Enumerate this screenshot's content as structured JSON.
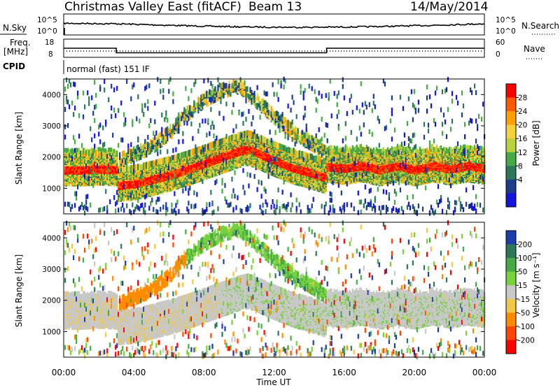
{
  "header": {
    "title": "Christmas Valley East (fitACF)",
    "beam": "Beam 13",
    "date": "14/May/2014"
  },
  "top_panels": {
    "nsky": {
      "left_label": "N.Sky",
      "right_label": "N.Search",
      "left_ticks": [
        "10^5",
        "10^0"
      ],
      "right_ticks": [
        "10^5",
        "10^0"
      ]
    },
    "freq": {
      "left_label_1": "Freq.",
      "left_label_2": "[MHz]",
      "right_label": "Nave",
      "left_ticks": [
        "18",
        "8"
      ],
      "right_ticks": [
        "60",
        "0"
      ]
    },
    "cpid": {
      "label": "CPID",
      "text": "normal (fast) 151 IF"
    }
  },
  "colorbars": {
    "power": {
      "title": "Power [dB]",
      "ticks": [
        "28",
        "24",
        "20",
        "16",
        "12",
        "8",
        "4"
      ],
      "colors": [
        "#ff0000",
        "#ff5a00",
        "#ffa000",
        "#f5d23c",
        "#b9d23c",
        "#46aa46",
        "#2d785a",
        "#1e3c8c",
        "#1414dc"
      ]
    },
    "velocity": {
      "title": "Velocity [m s⁻¹]",
      "ticks": [
        "200",
        "100",
        "50",
        "15",
        "-15",
        "-50",
        "-100",
        "-200"
      ],
      "colors": [
        "#1e3caa",
        "#2d785a",
        "#46aa46",
        "#78d23c",
        "#c8c8c8",
        "#f0c846",
        "#ff8c00",
        "#ff4600",
        "#ff0000"
      ]
    }
  },
  "chart_data": {
    "type": "heatmap",
    "x_label": "Time UT",
    "x_ticks": [
      "00:00",
      "04:00",
      "08:00",
      "12:00",
      "16:00",
      "20:00",
      "00:00"
    ],
    "x_range_hours": [
      0,
      24
    ],
    "y_label": "Slant Range [km]",
    "y_ticks": [
      1000,
      2000,
      3000,
      4000
    ],
    "y_range_km": [
      180,
      4500
    ],
    "panels": [
      "Power [dB]",
      "Velocity [m s⁻¹]"
    ],
    "frequency_mhz": [
      {
        "start_h": 0,
        "end_h": 3,
        "value": 13
      },
      {
        "start_h": 3,
        "end_h": 15,
        "value": 10.5
      },
      {
        "start_h": 15,
        "end_h": 24,
        "value": 13
      }
    ],
    "nave": 18,
    "main_band_km": [
      [
        0,
        1650
      ],
      [
        1,
        1650
      ],
      [
        2,
        1680
      ],
      [
        3,
        1650
      ],
      [
        3.05,
        1150
      ],
      [
        4,
        1200
      ],
      [
        5,
        1330
      ],
      [
        6,
        1480
      ],
      [
        7,
        1650
      ],
      [
        8,
        1850
      ],
      [
        9,
        2050
      ],
      [
        10,
        2250
      ],
      [
        10.5,
        2310
      ],
      [
        11,
        2200
      ],
      [
        12,
        1950
      ],
      [
        13,
        1720
      ],
      [
        14,
        1570
      ],
      [
        14.9,
        1400
      ],
      [
        15,
        1750
      ],
      [
        16,
        1700
      ],
      [
        17,
        1780
      ],
      [
        18,
        1650
      ],
      [
        19,
        1780
      ],
      [
        20,
        1650
      ],
      [
        21,
        1780
      ],
      [
        22,
        1680
      ],
      [
        23,
        1780
      ],
      [
        24,
        1700
      ]
    ],
    "secondary_arc_km": [
      [
        3.1,
        1900
      ],
      [
        5,
        2350
      ],
      [
        6,
        2800
      ],
      [
        7,
        3400
      ],
      [
        8,
        3850
      ],
      [
        9,
        4150
      ],
      [
        10,
        4300
      ],
      [
        11,
        3800
      ],
      [
        12,
        3300
      ],
      [
        13,
        2850
      ],
      [
        14,
        2500
      ],
      [
        15,
        2150
      ]
    ]
  }
}
